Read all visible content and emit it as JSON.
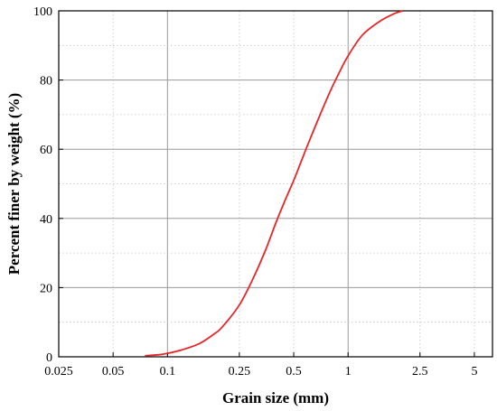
{
  "chart_data": {
    "type": "line",
    "xlabel": "Grain size (mm)",
    "ylabel": "Percent finer by weight (%)",
    "x_scale": "log",
    "xlim": [
      0.025,
      6.3
    ],
    "ylim": [
      0,
      100
    ],
    "x_ticks": [
      0.025,
      0.05,
      0.1,
      0.25,
      0.5,
      1,
      2.5,
      5
    ],
    "x_tick_labels": [
      "0.025",
      "0.05",
      "0.1",
      "0.25",
      "0.5",
      "1",
      "2.5",
      "5"
    ],
    "y_ticks": [
      0,
      20,
      40,
      60,
      80,
      100
    ],
    "y_tick_labels": [
      "0",
      "20",
      "40",
      "60",
      "80",
      "100"
    ],
    "grid": "dotted",
    "line_color": "#e8262a",
    "series": [
      {
        "x": [
          0.075,
          0.09,
          0.1,
          0.12,
          0.15,
          0.18,
          0.2,
          0.25,
          0.3,
          0.35,
          0.4,
          0.45,
          0.5,
          0.55,
          0.6,
          0.7,
          0.8,
          0.9,
          1.0,
          1.2,
          1.5,
          1.8,
          2.0
        ],
        "y": [
          0.3,
          0.6,
          1.0,
          2.0,
          3.8,
          6.5,
          8.5,
          15,
          23,
          31,
          39,
          45.5,
          51,
          56.5,
          61.5,
          70,
          77,
          82.5,
          87,
          93,
          97,
          99.2,
          100
        ]
      }
    ]
  }
}
